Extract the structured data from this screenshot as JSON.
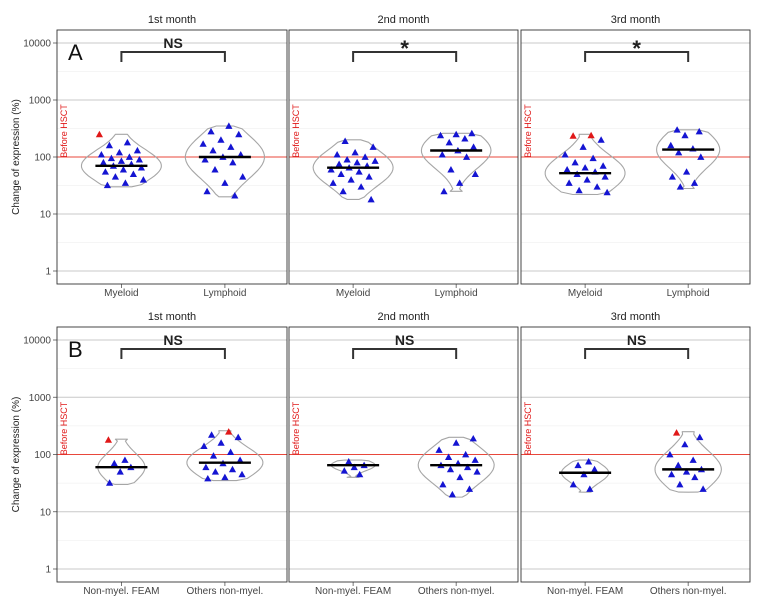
{
  "chart_data": {
    "type": "violin",
    "yscale": "log10",
    "ylim": [
      1,
      10000
    ],
    "yticks": [
      "1",
      "10",
      "100",
      "1000",
      "10000"
    ],
    "ylabel": "Change of expression (%)",
    "reference_line": {
      "value": 100,
      "label": "Before HSCT",
      "color": "#e8473b"
    },
    "colors": {
      "points": "#1414d2",
      "highlight": "#e01818",
      "violin": "#a6a6a6",
      "median": "#000000",
      "bracket": "#333333"
    },
    "rows": [
      {
        "tag": "A",
        "categories": [
          "Myeloid",
          "Lymphoid"
        ],
        "panels": [
          {
            "title": "1st month",
            "annotation": "NS",
            "groups": [
              {
                "name": "Myeloid",
                "median": 70,
                "range": [
                  30,
                  250
                ],
                "points": [
                  250,
                  180,
                  160,
                  130,
                  120,
                  110,
                  100,
                  95,
                  90,
                  85,
                  80,
                  75,
                  70,
                  65,
                  60,
                  55,
                  50,
                  45,
                  40,
                  35,
                  32
                ],
                "highlight": [
                  250
                ]
              },
              {
                "name": "Lymphoid",
                "median": 100,
                "range": [
                  20,
                  350
                ],
                "points": [
                  350,
                  280,
                  250,
                  200,
                  170,
                  150,
                  130,
                  110,
                  100,
                  90,
                  80,
                  60,
                  45,
                  35,
                  25,
                  21
                ],
                "highlight": []
              }
            ]
          },
          {
            "title": "2nd month",
            "annotation": "*",
            "groups": [
              {
                "name": "Myeloid",
                "median": 65,
                "range": [
                  18,
                  200
                ],
                "points": [
                  190,
                  150,
                  120,
                  110,
                  100,
                  90,
                  85,
                  80,
                  75,
                  70,
                  65,
                  60,
                  55,
                  50,
                  45,
                  40,
                  35,
                  30,
                  25,
                  18
                ],
                "highlight": []
              },
              {
                "name": "Lymphoid",
                "median": 130,
                "range": [
                  25,
                  260
                ],
                "points": [
                  260,
                  250,
                  240,
                  210,
                  180,
                  150,
                  130,
                  110,
                  100,
                  60,
                  50,
                  35,
                  25
                ],
                "highlight": []
              }
            ]
          },
          {
            "title": "3rd month",
            "annotation": "*",
            "groups": [
              {
                "name": "Myeloid",
                "median": 52,
                "range": [
                  22,
                  250
                ],
                "points": [
                  240,
                  235,
                  200,
                  150,
                  110,
                  95,
                  80,
                  70,
                  65,
                  60,
                  55,
                  50,
                  45,
                  40,
                  35,
                  30,
                  26,
                  24
                ],
                "highlight": [
                  240,
                  235
                ]
              },
              {
                "name": "Lymphoid",
                "median": 135,
                "range": [
                  28,
                  300
                ],
                "points": [
                  300,
                  280,
                  240,
                  160,
                  140,
                  120,
                  100,
                  55,
                  45,
                  35,
                  30
                ],
                "highlight": []
              }
            ]
          }
        ]
      },
      {
        "tag": "B",
        "categories": [
          "Non-myel. FEAM",
          "Others non-myel."
        ],
        "panels": [
          {
            "title": "1st month",
            "annotation": "NS",
            "groups": [
              {
                "name": "Non-myel. FEAM",
                "median": 60,
                "range": [
                  30,
                  185
                ],
                "points": [
                  180,
                  80,
                  70,
                  60,
                  50,
                  32
                ],
                "highlight": [
                  180
                ]
              },
              {
                "name": "Others non-myel.",
                "median": 72,
                "range": [
                  35,
                  260
                ],
                "points": [
                  250,
                  220,
                  200,
                  160,
                  140,
                  110,
                  95,
                  80,
                  70,
                  60,
                  55,
                  50,
                  45,
                  40,
                  38
                ],
                "highlight": [
                  250
                ]
              }
            ]
          },
          {
            "title": "2nd month",
            "annotation": "NS",
            "groups": [
              {
                "name": "Non-myel. FEAM",
                "median": 65,
                "range": [
                  40,
                  80
                ],
                "points": [
                  75,
                  65,
                  60,
                  52,
                  45
                ],
                "highlight": []
              },
              {
                "name": "Others non-myel.",
                "median": 65,
                "range": [
                  18,
                  200
                ],
                "points": [
                  190,
                  160,
                  120,
                  100,
                  90,
                  80,
                  70,
                  65,
                  60,
                  55,
                  50,
                  40,
                  30,
                  25,
                  20
                ],
                "highlight": []
              }
            ]
          },
          {
            "title": "3rd month",
            "annotation": "NS",
            "groups": [
              {
                "name": "Non-myel. FEAM",
                "median": 48,
                "range": [
                  22,
                  80
                ],
                "points": [
                  75,
                  65,
                  55,
                  45,
                  30,
                  25
                ],
                "highlight": []
              },
              {
                "name": "Others non-myel.",
                "median": 55,
                "range": [
                  22,
                  250
                ],
                "points": [
                  240,
                  200,
                  150,
                  100,
                  80,
                  65,
                  55,
                  50,
                  45,
                  40,
                  30,
                  25
                ],
                "highlight": [
                  240
                ]
              }
            ]
          }
        ]
      }
    ]
  }
}
